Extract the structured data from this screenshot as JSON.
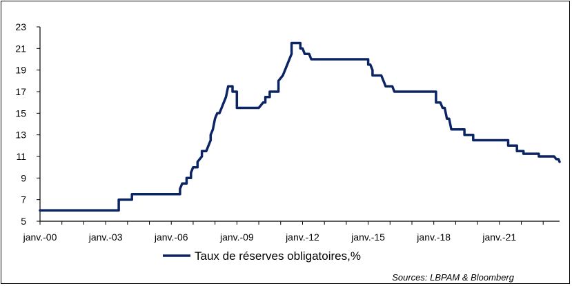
{
  "chart_data": {
    "type": "line",
    "title": "",
    "xlabel": "",
    "ylabel": "",
    "ylim": [
      5,
      23
    ],
    "y_ticks": [
      5,
      7,
      9,
      11,
      13,
      15,
      17,
      19,
      21,
      23
    ],
    "x_tick_labels": [
      "janv.-00",
      "janv.-03",
      "janv.-06",
      "janv.-09",
      "janv.-12",
      "janv.-15",
      "janv.-18",
      "janv.-21"
    ],
    "x_tick_years": [
      2000,
      2003,
      2006,
      2009,
      2012,
      2015,
      2018,
      2021
    ],
    "xlim": [
      2000.0,
      2023.75
    ],
    "grid": false,
    "legend_position": "bottom",
    "line_color": "#0b2463",
    "series": [
      {
        "name": "Taux de réserves obligatoires,%",
        "points": [
          [
            2000.0,
            6.0
          ],
          [
            2003.6,
            6.0
          ],
          [
            2003.6,
            7.0
          ],
          [
            2004.2,
            7.0
          ],
          [
            2004.2,
            7.5
          ],
          [
            2006.4,
            7.5
          ],
          [
            2006.4,
            8.0
          ],
          [
            2006.5,
            8.5
          ],
          [
            2006.7,
            8.5
          ],
          [
            2006.7,
            9.0
          ],
          [
            2006.9,
            9.0
          ],
          [
            2006.9,
            9.5
          ],
          [
            2007.0,
            10.0
          ],
          [
            2007.2,
            10.0
          ],
          [
            2007.2,
            10.5
          ],
          [
            2007.4,
            11.0
          ],
          [
            2007.4,
            11.5
          ],
          [
            2007.6,
            11.5
          ],
          [
            2007.7,
            12.0
          ],
          [
            2007.8,
            12.5
          ],
          [
            2007.8,
            13.0
          ],
          [
            2007.9,
            13.5
          ],
          [
            2008.0,
            14.5
          ],
          [
            2008.1,
            15.0
          ],
          [
            2008.2,
            15.0
          ],
          [
            2008.3,
            15.5
          ],
          [
            2008.4,
            16.0
          ],
          [
            2008.5,
            16.5
          ],
          [
            2008.6,
            17.5
          ],
          [
            2008.8,
            17.5
          ],
          [
            2008.8,
            17.0
          ],
          [
            2009.0,
            17.0
          ],
          [
            2009.0,
            15.5
          ],
          [
            2010.0,
            15.5
          ],
          [
            2010.2,
            16.0
          ],
          [
            2010.3,
            16.0
          ],
          [
            2010.3,
            16.5
          ],
          [
            2010.5,
            16.5
          ],
          [
            2010.5,
            17.0
          ],
          [
            2010.9,
            17.0
          ],
          [
            2010.9,
            18.0
          ],
          [
            2011.1,
            18.5
          ],
          [
            2011.2,
            19.0
          ],
          [
            2011.3,
            19.5
          ],
          [
            2011.4,
            20.0
          ],
          [
            2011.5,
            20.5
          ],
          [
            2011.5,
            21.5
          ],
          [
            2011.9,
            21.5
          ],
          [
            2011.9,
            21.0
          ],
          [
            2012.0,
            21.0
          ],
          [
            2012.1,
            20.5
          ],
          [
            2012.3,
            20.5
          ],
          [
            2012.4,
            20.0
          ],
          [
            2015.0,
            20.0
          ],
          [
            2015.0,
            19.5
          ],
          [
            2015.1,
            19.5
          ],
          [
            2015.2,
            19.0
          ],
          [
            2015.2,
            18.5
          ],
          [
            2015.6,
            18.5
          ],
          [
            2015.7,
            18.0
          ],
          [
            2015.8,
            17.5
          ],
          [
            2016.1,
            17.5
          ],
          [
            2016.2,
            17.0
          ],
          [
            2018.1,
            17.0
          ],
          [
            2018.1,
            16.0
          ],
          [
            2018.3,
            16.0
          ],
          [
            2018.4,
            15.5
          ],
          [
            2018.5,
            15.5
          ],
          [
            2018.6,
            14.5
          ],
          [
            2018.7,
            14.5
          ],
          [
            2018.8,
            13.5
          ],
          [
            2019.4,
            13.5
          ],
          [
            2019.4,
            13.0
          ],
          [
            2019.8,
            13.0
          ],
          [
            2019.8,
            12.5
          ],
          [
            2021.4,
            12.5
          ],
          [
            2021.4,
            12.0
          ],
          [
            2021.8,
            12.0
          ],
          [
            2021.8,
            11.5
          ],
          [
            2022.1,
            11.5
          ],
          [
            2022.1,
            11.25
          ],
          [
            2022.8,
            11.25
          ],
          [
            2022.8,
            11.0
          ],
          [
            2023.5,
            11.0
          ],
          [
            2023.6,
            10.75
          ],
          [
            2023.7,
            10.75
          ],
          [
            2023.75,
            10.5
          ]
        ]
      }
    ]
  },
  "legend": {
    "label": "Taux de réserves obligatoires,%"
  },
  "source": "Sources: LBPAM & Bloomberg"
}
